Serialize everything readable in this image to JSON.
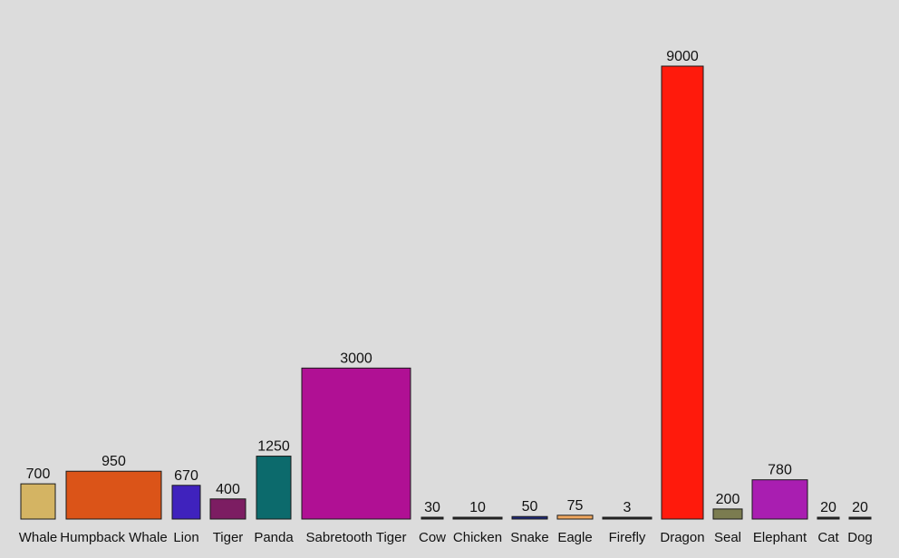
{
  "chart_data": {
    "type": "bar",
    "title": "",
    "xlabel": "",
    "ylabel": "",
    "ylim": [
      0,
      9000
    ],
    "grid": false,
    "bars": [
      {
        "category": "Whale",
        "value": 700,
        "label": "700",
        "color": "#d4b463"
      },
      {
        "category": "Humpback Whale",
        "value": 950,
        "label": "950",
        "color": "#db5418"
      },
      {
        "category": "Lion",
        "value": 670,
        "label": "670",
        "color": "#3f22bd"
      },
      {
        "category": "Tiger",
        "value": 400,
        "label": "400",
        "color": "#7c1d62"
      },
      {
        "category": "Panda",
        "value": 1250,
        "label": "1250",
        "color": "#0c6a6c"
      },
      {
        "category": "Sabretooth Tiger",
        "value": 3000,
        "label": "3000",
        "color": "#b01094"
      },
      {
        "category": "Cow",
        "value": 30,
        "label": "30",
        "color": "#2a2a2a"
      },
      {
        "category": "Chicken",
        "value": 10,
        "label": "10",
        "color": "#2a2a2a"
      },
      {
        "category": "Snake",
        "value": 50,
        "label": "50",
        "color": "#1f2a7a"
      },
      {
        "category": "Eagle",
        "value": 75,
        "label": "75",
        "color": "#f0a860"
      },
      {
        "category": "Firefly",
        "value": 3,
        "label": "3",
        "color": "#2a2a2a"
      },
      {
        "category": "Dragon",
        "value": 9000,
        "label": "9000",
        "color": "#ff1a0c"
      },
      {
        "category": "Seal",
        "value": 200,
        "label": "200",
        "color": "#7b7c50"
      },
      {
        "category": "Elephant",
        "value": 780,
        "label": "780",
        "color": "#a91eb1"
      },
      {
        "category": "Cat",
        "value": 20,
        "label": "20",
        "color": "#2a2a2a"
      },
      {
        "category": "Dog",
        "value": 20,
        "label": "20",
        "color": "#2a2a2a"
      }
    ]
  }
}
